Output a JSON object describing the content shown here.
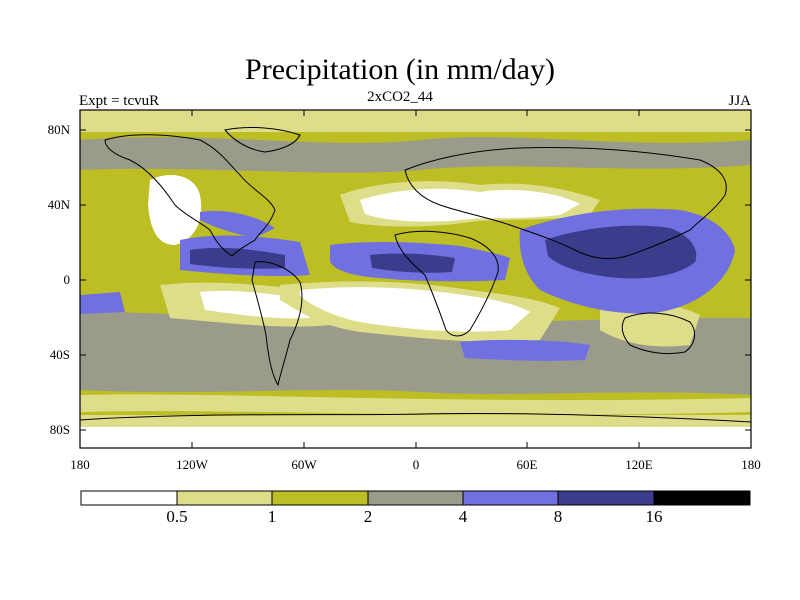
{
  "title": "Precipitation (in mm/day)",
  "subtitle": "2xCO2_44",
  "left_label": "Expt = tcvuR",
  "right_label": "JJA",
  "lat_labels": [
    "80N",
    "40N",
    "0",
    "40S",
    "80S"
  ],
  "lon_labels": [
    "180",
    "120W",
    "60W",
    "0",
    "60E",
    "120E",
    "180"
  ],
  "colorbar": {
    "labels": [
      "0.5",
      "1",
      "2",
      "4",
      "8",
      "16"
    ],
    "colors": [
      "#ffffff",
      "#dede8a",
      "#bdbd24",
      "#9b9b8c",
      "#7070e0",
      "#3c3c8c",
      "#000000"
    ]
  }
}
